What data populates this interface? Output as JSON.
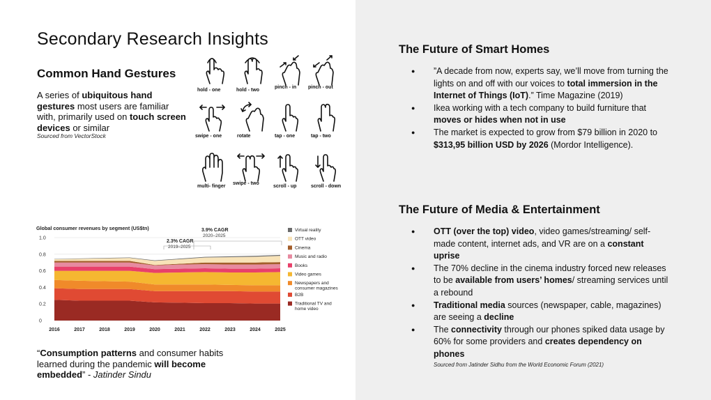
{
  "slide": {
    "title": "Secondary Research Insights"
  },
  "gestures": {
    "heading": "Common Hand Gestures",
    "desc_parts": [
      "A series of ",
      "ubiquitous hand gestures",
      " most users are familiar with, primarily used on ",
      "touch screen devices",
      " or similar"
    ],
    "source": "Sourced from VectorStock",
    "items": [
      {
        "label": "hold - one",
        "icon": "hold-one-icon"
      },
      {
        "label": "hold - two",
        "icon": "hold-two-icon"
      },
      {
        "label": "pinch - in",
        "icon": "pinch-in-icon"
      },
      {
        "label": "pinch - out",
        "icon": "pinch-out-icon"
      },
      {
        "label": "swipe - one",
        "icon": "swipe-one-icon"
      },
      {
        "label": "rotate",
        "icon": "rotate-icon"
      },
      {
        "label": "tap - one",
        "icon": "tap-one-icon"
      },
      {
        "label": "tap - two",
        "icon": "tap-two-icon"
      },
      {
        "label": "multi- finger",
        "icon": "multi-finger-icon"
      },
      {
        "label": "swipe - two",
        "icon": "swipe-two-icon"
      },
      {
        "label": "scroll - up",
        "icon": "scroll-up-icon"
      },
      {
        "label": "scroll - down",
        "icon": "scroll-down-icon"
      }
    ]
  },
  "chart_data": {
    "type": "area",
    "title": "Global consumer revenues by segment (US$tn)",
    "categories": [
      "2016",
      "2017",
      "2018",
      "2019",
      "2020",
      "2021",
      "2022",
      "2023",
      "2024",
      "2025"
    ],
    "yticks": [
      "0",
      "0.2",
      "0.4",
      "0.6",
      "0.8",
      "1.0"
    ],
    "ylim": [
      0,
      1.0
    ],
    "annotations": [
      {
        "label": "2.3% CAGR",
        "sub": "2019–2025"
      },
      {
        "label": "3.9% CAGR",
        "sub": "2020–2025"
      }
    ],
    "legend_position": "right",
    "series": [
      {
        "name": "Traditional TV and home video",
        "color": "#9a2a23",
        "values": [
          0.25,
          0.24,
          0.24,
          0.24,
          0.22,
          0.215,
          0.21,
          0.21,
          0.205,
          0.205
        ]
      },
      {
        "name": "B2B",
        "color": "#e04a33",
        "values": [
          0.14,
          0.14,
          0.14,
          0.14,
          0.135,
          0.14,
          0.145,
          0.145,
          0.145,
          0.145
        ]
      },
      {
        "name": "Newspapers and consumer magazines",
        "color": "#f08a2a",
        "values": [
          0.1,
          0.1,
          0.095,
          0.09,
          0.08,
          0.08,
          0.08,
          0.075,
          0.075,
          0.075
        ]
      },
      {
        "name": "Video games",
        "color": "#f5b731",
        "values": [
          0.11,
          0.12,
          0.125,
          0.13,
          0.14,
          0.145,
          0.15,
          0.15,
          0.155,
          0.16
        ]
      },
      {
        "name": "Books",
        "color": "#e8406a",
        "values": [
          0.05,
          0.05,
          0.05,
          0.05,
          0.045,
          0.045,
          0.045,
          0.045,
          0.045,
          0.045
        ]
      },
      {
        "name": "Music and radio",
        "color": "#e78aa0",
        "values": [
          0.05,
          0.05,
          0.05,
          0.05,
          0.045,
          0.05,
          0.05,
          0.05,
          0.05,
          0.05
        ]
      },
      {
        "name": "Cinema",
        "color": "#a35d2b",
        "values": [
          0.02,
          0.02,
          0.02,
          0.02,
          0.005,
          0.01,
          0.02,
          0.025,
          0.025,
          0.025
        ]
      },
      {
        "name": "OTT video",
        "color": "#f8e3b8",
        "values": [
          0.02,
          0.025,
          0.03,
          0.035,
          0.05,
          0.055,
          0.06,
          0.065,
          0.07,
          0.075
        ]
      },
      {
        "name": "Virtual reality",
        "color": "#6b6b6b",
        "values": [
          0.003,
          0.004,
          0.005,
          0.005,
          0.006,
          0.007,
          0.008,
          0.009,
          0.01,
          0.011
        ]
      }
    ]
  },
  "quote": {
    "parts": [
      "“",
      "Consumption patterns",
      " and consumer habits learned during the pandemic ",
      "will become embedded",
      "” - ",
      "Jatinder Sindu"
    ]
  },
  "smart_homes": {
    "heading": "The Future of Smart Homes",
    "b1": [
      "”A decade from now, experts say, we’ll move from turning the lights on and off with our voices to ",
      "total immersion in the Internet of Things (IoT)",
      ".” Time Magazine (2019)"
    ],
    "b2": [
      "Ikea working with a tech company to build furniture that ",
      "moves or hides when not in use"
    ],
    "b3": [
      "The market is expected to grow from $79 billion in 2020 to ",
      "$313,95 billion USD by 2026",
      " (Mordor Intelligence)."
    ]
  },
  "media": {
    "heading": "The Future of Media & Entertainment",
    "b1": [
      "OTT (over the top) video",
      ", video games/streaming/ self-made content, internet ads, and VR are on a ",
      "constant uprise"
    ],
    "b2": [
      "The 70% decline in the cinema industry forced new releases to be ",
      "available from users’ homes",
      "/ streaming services until a rebound"
    ],
    "b3": [
      "Traditional media",
      " sources (newspaper, cable, magazines) are seeing a ",
      "decline"
    ],
    "b4": [
      "The ",
      "connectivity",
      " through our phones spiked data usage by 60% for some providers and ",
      "creates dependency on phones"
    ],
    "source": "Sourced from Jatinder Sidhu from the World Economic Forum (2021)"
  }
}
